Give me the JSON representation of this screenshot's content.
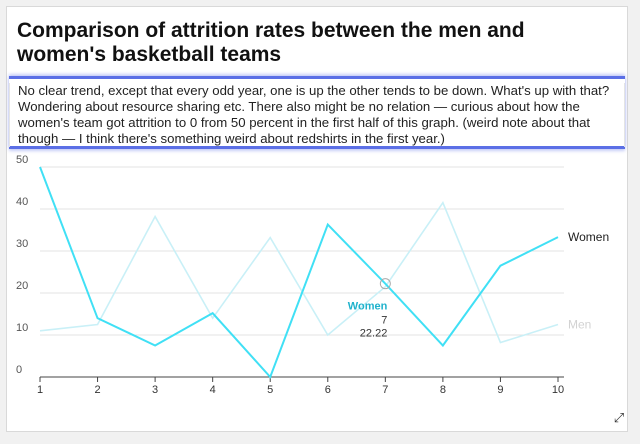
{
  "header": {
    "title": "Comparison of attrition rates between the men and women's basketball teams",
    "description": "No clear trend, except that every odd year, one is up the other tends to be down. What's up with that? Wondering about resource sharing etc. There also might be no relation — curious about how the women's team got attrition to 0 from 50 percent in the first half of this graph. (weird note about that though — I think there's something weird about redshirts in the first year.)"
  },
  "chart_data": {
    "type": "line",
    "title": "",
    "xlabel": "",
    "ylabel": "",
    "x": [
      1,
      2,
      3,
      4,
      5,
      6,
      7,
      8,
      9,
      10
    ],
    "ylim": [
      0,
      50
    ],
    "yticks": [
      0,
      10,
      20,
      30,
      40,
      50
    ],
    "grid": true,
    "legend": "line-end labels",
    "series": [
      {
        "name": "Women",
        "values": [
          50,
          14,
          7.5,
          15.2,
          0,
          36.3,
          22.22,
          7.5,
          26.5,
          33.3
        ],
        "color": "#40e0f5",
        "emphasis": "active"
      },
      {
        "name": "Men",
        "values": [
          11,
          12.5,
          38.2,
          14,
          33.2,
          10,
          21.5,
          41.5,
          8.2,
          12.5
        ],
        "color": "#c9f0f7",
        "emphasis": "faded"
      }
    ],
    "tooltip": {
      "series": "Women",
      "x": "7",
      "y": "22.22",
      "label_color": "#1fb2cc"
    }
  }
}
